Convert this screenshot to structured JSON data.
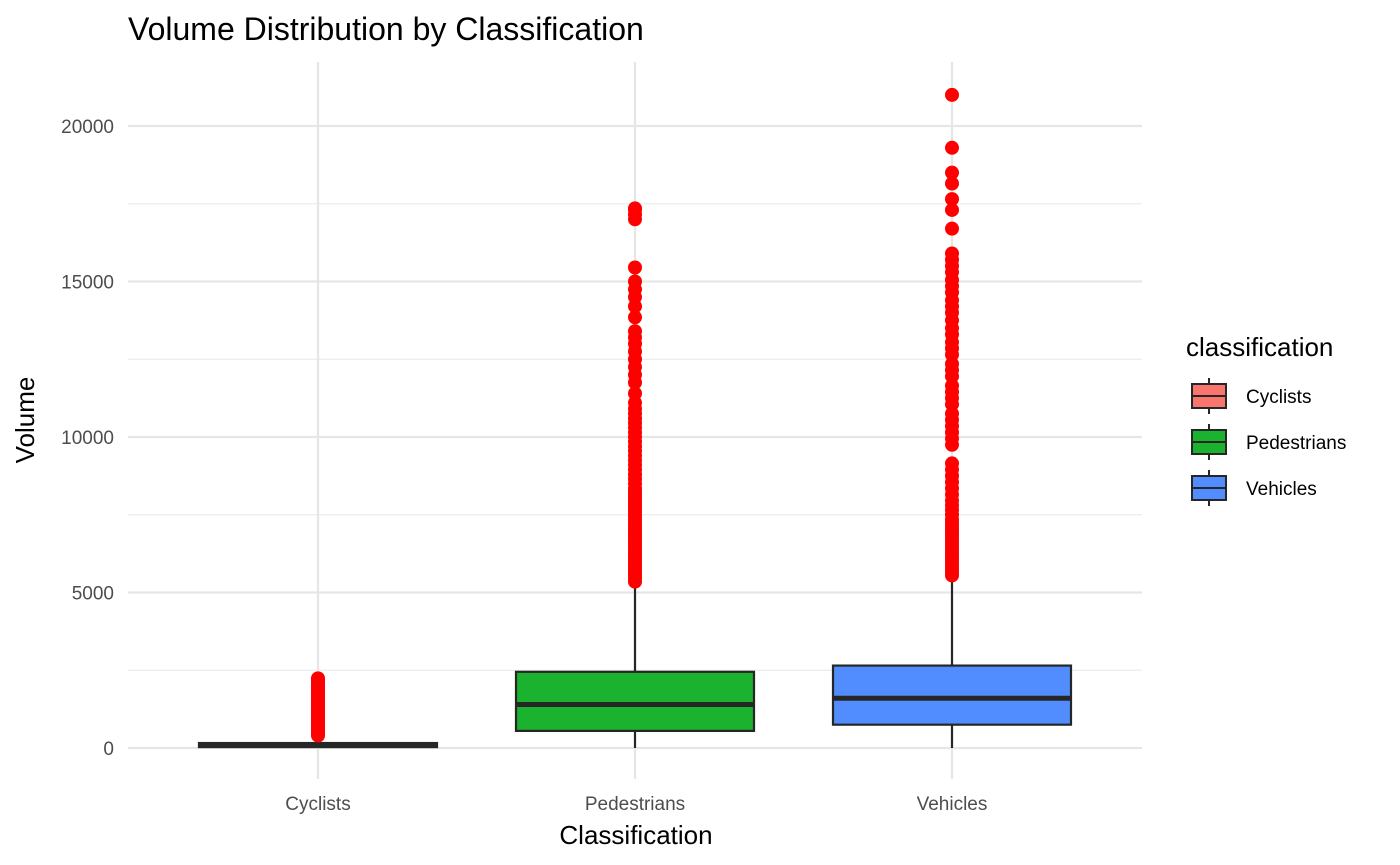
{
  "chart_data": {
    "type": "box",
    "title": "Volume Distribution by Classification",
    "xlabel": "Classification",
    "ylabel": "Volume",
    "categories": [
      "Cyclists",
      "Pedestrians",
      "Vehicles"
    ],
    "ylim": [
      -2200,
      22000
    ],
    "yticks": [
      0,
      5000,
      10000,
      15000,
      20000
    ],
    "grid": true,
    "legend": {
      "title": "classification",
      "position": "right",
      "entries": [
        "Cyclists",
        "Pedestrians",
        "Vehicles"
      ]
    },
    "outlier_color": "#ff0000",
    "boxes": [
      {
        "name": "Cyclists",
        "color": "#f8766d",
        "min": 0,
        "q1": 30,
        "median": 80,
        "q3": 160,
        "max": 380,
        "outliers": [
          400,
          460,
          520,
          580,
          640,
          700,
          760,
          820,
          880,
          940,
          1000,
          1060,
          1120,
          1180,
          1240,
          1300,
          1360,
          1420,
          1480,
          1540,
          1600,
          1660,
          1720,
          1780,
          1840,
          1900,
          1960,
          2020,
          2080,
          2140,
          2200,
          2240
        ]
      },
      {
        "name": "Pedestrians",
        "color": "#1ab22e",
        "min": 0,
        "q1": 550,
        "median": 1400,
        "q3": 2450,
        "max": 5300,
        "outliers": [
          5350,
          5450,
          5550,
          5650,
          5750,
          5850,
          5950,
          6050,
          6150,
          6250,
          6350,
          6450,
          6550,
          6650,
          6750,
          6850,
          6950,
          7050,
          7150,
          7250,
          7350,
          7450,
          7550,
          7650,
          7750,
          7850,
          7950,
          8050,
          8150,
          8250,
          8350,
          8500,
          8650,
          8800,
          8950,
          9100,
          9250,
          9400,
          9550,
          9700,
          9850,
          10000,
          10150,
          10300,
          10450,
          10600,
          10750,
          10900,
          11100,
          11400,
          11750,
          12000,
          12250,
          12500,
          12750,
          13000,
          13200,
          13400,
          13850,
          14200,
          14500,
          14750,
          15000,
          15450,
          17000,
          17150,
          17300,
          17350
        ]
      },
      {
        "name": "Vehicles",
        "color": "#528dff",
        "min": 0,
        "q1": 750,
        "median": 1600,
        "q3": 2650,
        "max": 5500,
        "outliers": [
          5550,
          5650,
          5750,
          5850,
          5950,
          6050,
          6150,
          6250,
          6350,
          6450,
          6550,
          6650,
          6750,
          6850,
          6950,
          7050,
          7150,
          7250,
          7350,
          7500,
          7650,
          7800,
          7950,
          8150,
          8350,
          8550,
          8750,
          8950,
          9150,
          9750,
          9950,
          10150,
          10350,
          10550,
          10750,
          11050,
          11250,
          11450,
          11650,
          11950,
          12150,
          12350,
          12650,
          12850,
          13050,
          13300,
          13500,
          13750,
          14000,
          14200,
          14400,
          14650,
          14850,
          15050,
          15300,
          15500,
          15700,
          15900,
          16700,
          17300,
          17650,
          18150,
          18500,
          19300,
          21000
        ]
      }
    ]
  }
}
